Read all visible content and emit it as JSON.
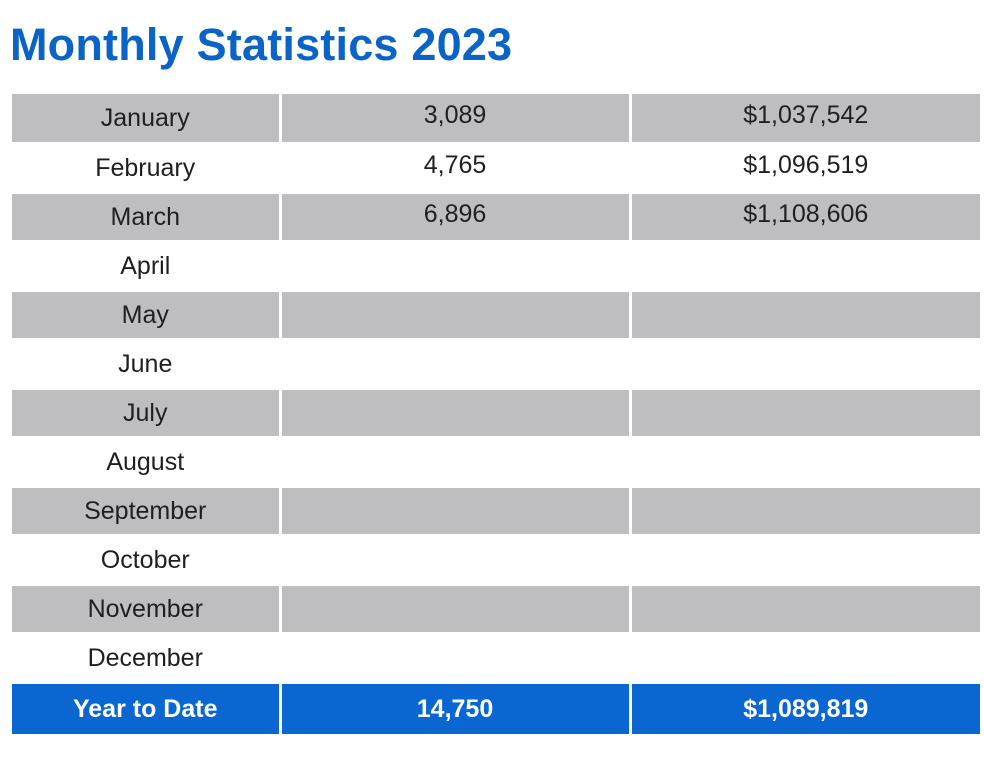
{
  "title": "Monthly Statistics 2023",
  "rows": [
    {
      "month": "January",
      "count": "3,089",
      "amount": "$1,037,542"
    },
    {
      "month": "February",
      "count": "4,765",
      "amount": "$1,096,519"
    },
    {
      "month": "March",
      "count": "6,896",
      "amount": "$1,108,606"
    },
    {
      "month": "April",
      "count": "",
      "amount": ""
    },
    {
      "month": "May",
      "count": "",
      "amount": ""
    },
    {
      "month": "June",
      "count": "",
      "amount": ""
    },
    {
      "month": "July",
      "count": "",
      "amount": ""
    },
    {
      "month": "August",
      "count": "",
      "amount": ""
    },
    {
      "month": "September",
      "count": "",
      "amount": ""
    },
    {
      "month": "October",
      "count": "",
      "amount": ""
    },
    {
      "month": "November",
      "count": "",
      "amount": ""
    },
    {
      "month": "December",
      "count": "",
      "amount": ""
    }
  ],
  "total": {
    "label": "Year to Date",
    "count": "14,750",
    "amount": "$1,089,819"
  },
  "colors": {
    "title": "#0a64c8",
    "row_shade": "#bebdc0",
    "total_background": "#0a67d1"
  }
}
